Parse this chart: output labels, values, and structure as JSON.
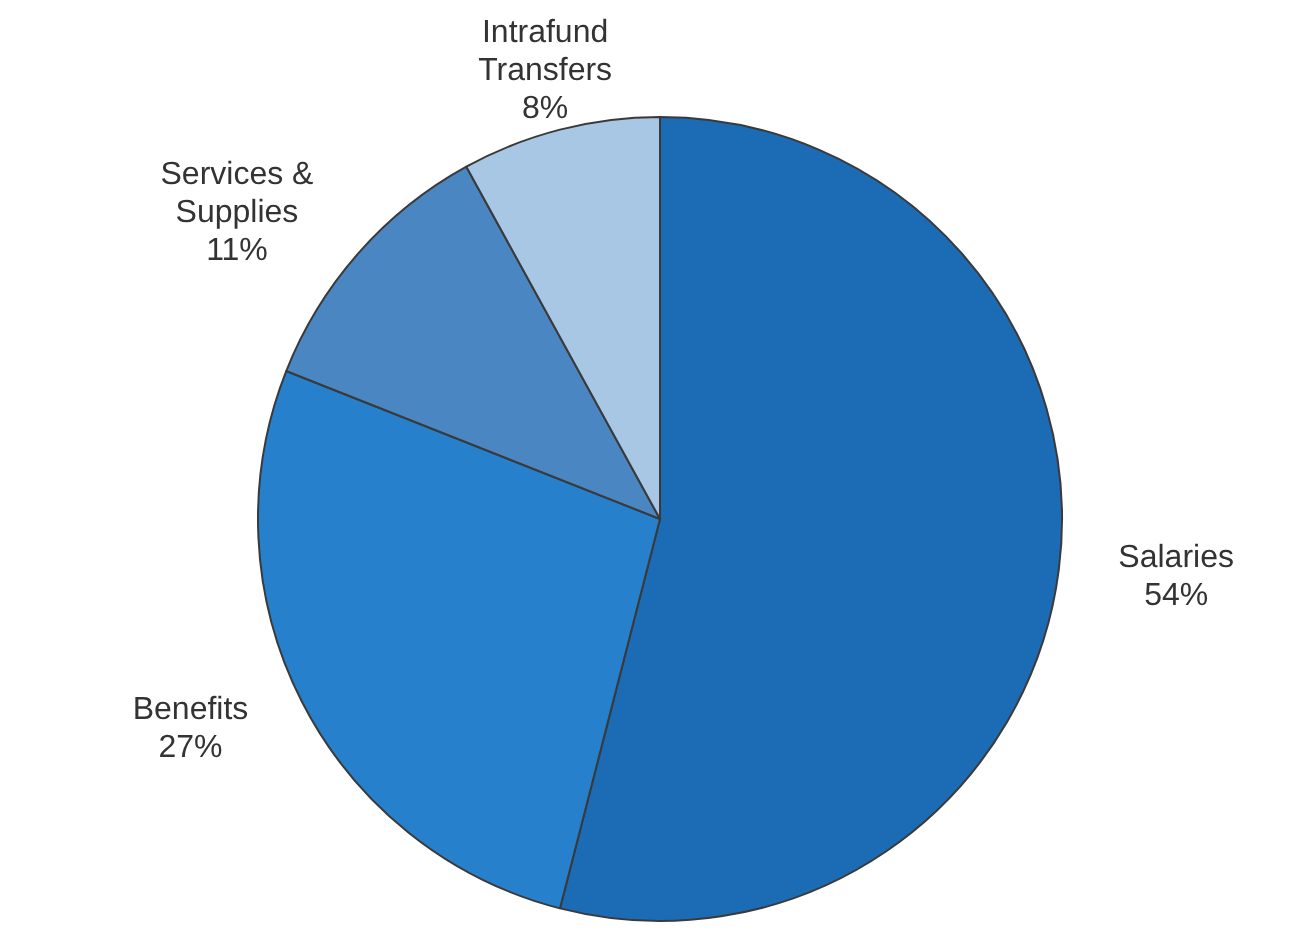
{
  "chart_data": {
    "type": "pie",
    "categories": [
      "Salaries",
      "Benefits",
      "Services & Supplies",
      "Intrafund Transfers"
    ],
    "values": [
      54,
      27,
      11,
      8
    ],
    "value_labels": [
      "54%",
      "27%",
      "11%",
      "8%"
    ],
    "colors": [
      "#1c6cb5",
      "#2680cc",
      "#4a87c2",
      "#a7c7e5"
    ],
    "legend": false
  }
}
